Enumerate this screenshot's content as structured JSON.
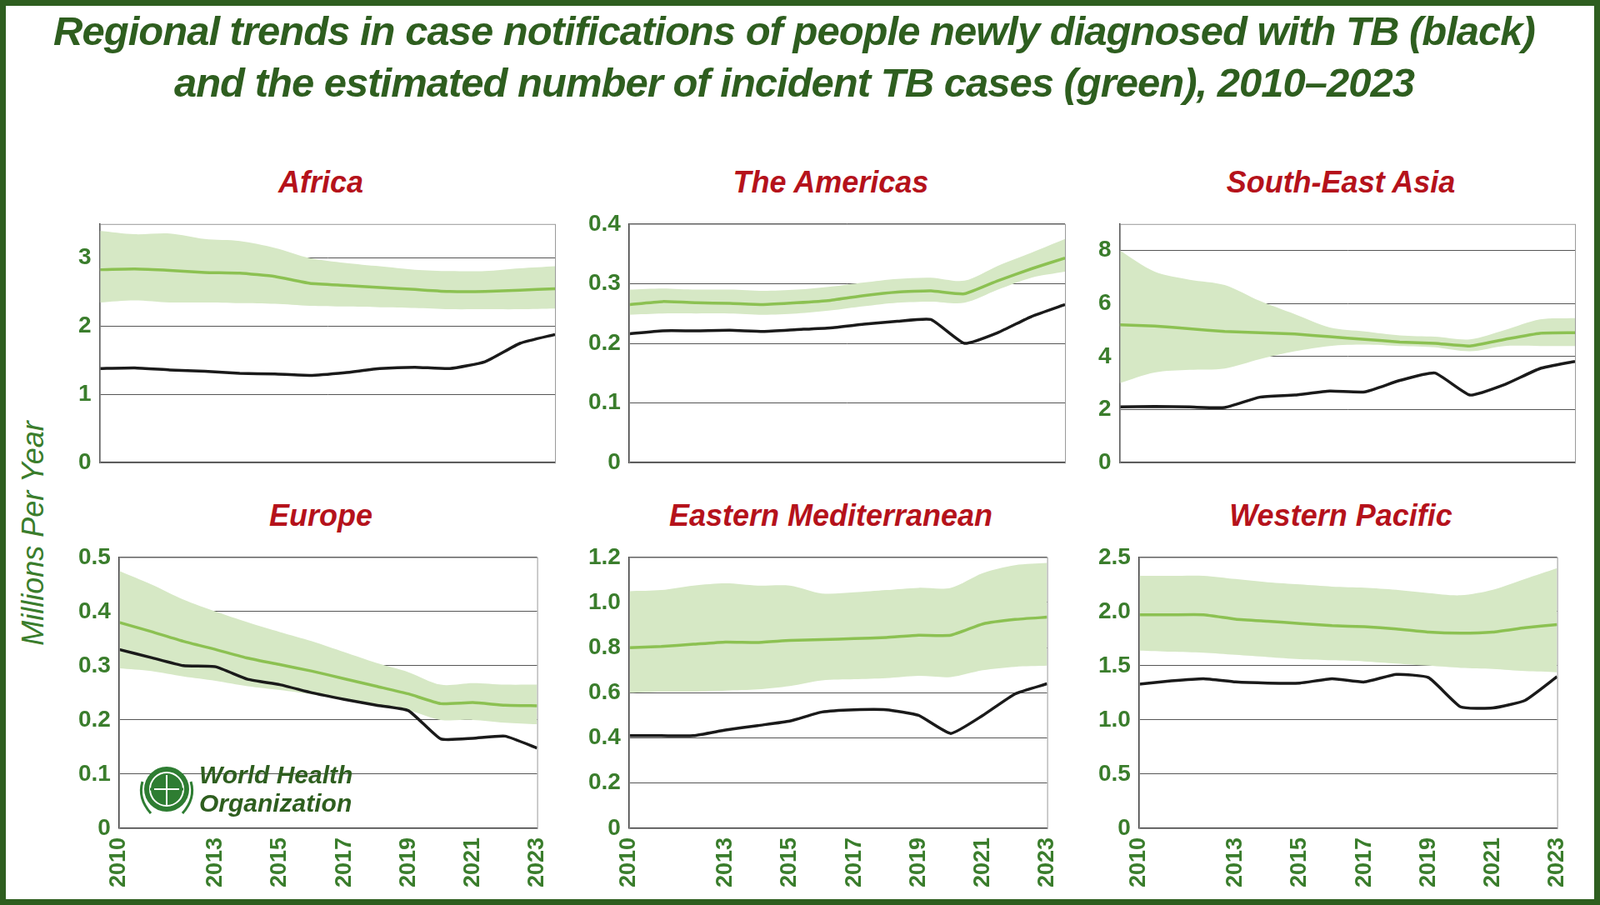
{
  "title": "Regional trends in case notifications of people newly diagnosed with TB (black) and the estimated number of incident TB cases (green), 2010–2023",
  "y_label": "Millions Per Year",
  "chart_data": [
    {
      "type": "line",
      "title": "Africa",
      "x": [
        2010,
        2011,
        2012,
        2013,
        2014,
        2015,
        2016,
        2017,
        2018,
        2019,
        2020,
        2021,
        2022,
        2023
      ],
      "xlim": [
        2010,
        2023
      ],
      "xticks": [
        2010,
        2013,
        2015,
        2017,
        2019,
        2021,
        2023
      ],
      "ylim": [
        0,
        3.5
      ],
      "yticks": [
        0,
        1,
        2,
        3
      ],
      "grid": true,
      "tick_labels": "y",
      "series": [
        {
          "type": "band",
          "color": "#d6e8c5",
          "lower": [
            2.35,
            2.38,
            2.35,
            2.35,
            2.34,
            2.33,
            2.3,
            2.29,
            2.28,
            2.27,
            2.25,
            2.25,
            2.25,
            2.26
          ],
          "upper": [
            3.4,
            3.35,
            3.36,
            3.28,
            3.25,
            3.15,
            3.0,
            2.93,
            2.88,
            2.83,
            2.81,
            2.81,
            2.85,
            2.88
          ]
        },
        {
          "color": "#8cc152",
          "values": [
            2.83,
            2.84,
            2.82,
            2.79,
            2.78,
            2.73,
            2.63,
            2.6,
            2.57,
            2.54,
            2.51,
            2.51,
            2.53,
            2.55
          ]
        },
        {
          "color": "#1a1a1a",
          "values": [
            1.38,
            1.39,
            1.36,
            1.34,
            1.31,
            1.3,
            1.28,
            1.32,
            1.38,
            1.4,
            1.38,
            1.48,
            1.75,
            1.88
          ]
        }
      ]
    },
    {
      "type": "line",
      "title": "The Americas",
      "x": [
        2010,
        2011,
        2012,
        2013,
        2014,
        2015,
        2016,
        2017,
        2018,
        2019,
        2020,
        2021,
        2022,
        2023
      ],
      "xlim": [
        2010,
        2023
      ],
      "xticks": [
        2010,
        2013,
        2015,
        2017,
        2019,
        2021,
        2023
      ],
      "ylim": [
        0,
        0.4
      ],
      "yticks": [
        0,
        0.1,
        0.2,
        0.3,
        0.4
      ],
      "grid": true,
      "tick_labels": "y",
      "series": [
        {
          "type": "band",
          "color": "#d6e8c5",
          "lower": [
            0.248,
            0.25,
            0.25,
            0.25,
            0.248,
            0.25,
            0.255,
            0.262,
            0.268,
            0.27,
            0.268,
            0.29,
            0.31,
            0.32
          ],
          "upper": [
            0.29,
            0.292,
            0.29,
            0.29,
            0.288,
            0.29,
            0.295,
            0.302,
            0.308,
            0.31,
            0.305,
            0.33,
            0.352,
            0.375
          ]
        },
        {
          "color": "#8cc152",
          "values": [
            0.265,
            0.27,
            0.268,
            0.267,
            0.265,
            0.268,
            0.272,
            0.28,
            0.286,
            0.288,
            0.283,
            0.305,
            0.325,
            0.343
          ]
        },
        {
          "color": "#1a1a1a",
          "values": [
            0.216,
            0.221,
            0.221,
            0.222,
            0.22,
            0.223,
            0.226,
            0.232,
            0.237,
            0.24,
            0.2,
            0.218,
            0.245,
            0.265
          ]
        }
      ]
    },
    {
      "type": "line",
      "title": "South-East Asia",
      "x": [
        2010,
        2011,
        2012,
        2013,
        2014,
        2015,
        2016,
        2017,
        2018,
        2019,
        2020,
        2021,
        2022,
        2023
      ],
      "xlim": [
        2010,
        2023
      ],
      "xticks": [
        2010,
        2013,
        2015,
        2017,
        2019,
        2021,
        2023
      ],
      "ylim": [
        0,
        9
      ],
      "yticks": [
        0,
        2,
        4,
        6,
        8
      ],
      "grid": true,
      "tick_labels": "y",
      "series": [
        {
          "type": "band",
          "color": "#d6e8c5",
          "lower": [
            3.0,
            3.4,
            3.5,
            3.55,
            3.9,
            4.2,
            4.4,
            4.45,
            4.4,
            4.35,
            4.2,
            4.4,
            4.4,
            4.4
          ],
          "upper": [
            8.0,
            7.2,
            6.9,
            6.7,
            6.1,
            5.6,
            5.1,
            4.95,
            4.8,
            4.75,
            4.65,
            5.0,
            5.4,
            5.45
          ]
        },
        {
          "color": "#8cc152",
          "values": [
            5.2,
            5.15,
            5.05,
            4.95,
            4.9,
            4.85,
            4.75,
            4.65,
            4.55,
            4.5,
            4.4,
            4.65,
            4.88,
            4.9
          ]
        },
        {
          "color": "#1a1a1a",
          "values": [
            2.1,
            2.12,
            2.1,
            2.08,
            2.47,
            2.55,
            2.7,
            2.67,
            3.1,
            3.38,
            2.55,
            2.95,
            3.55,
            3.82
          ]
        }
      ]
    },
    {
      "type": "line",
      "title": "Europe",
      "annotation": "World Health Organization",
      "x": [
        2010,
        2011,
        2012,
        2013,
        2014,
        2015,
        2016,
        2017,
        2018,
        2019,
        2020,
        2021,
        2022,
        2023
      ],
      "xlim": [
        2010,
        2023
      ],
      "xticks": [
        2010,
        2013,
        2015,
        2017,
        2019,
        2021,
        2023
      ],
      "ylim": [
        0,
        0.5
      ],
      "yticks": [
        0,
        0.1,
        0.2,
        0.3,
        0.4,
        0.5
      ],
      "grid": true,
      "series": [
        {
          "type": "band",
          "color": "#d6e8c5",
          "lower": [
            0.295,
            0.29,
            0.28,
            0.272,
            0.262,
            0.255,
            0.247,
            0.238,
            0.228,
            0.218,
            0.2,
            0.2,
            0.195,
            0.192
          ],
          "upper": [
            0.475,
            0.45,
            0.422,
            0.4,
            0.38,
            0.362,
            0.345,
            0.325,
            0.305,
            0.288,
            0.265,
            0.268,
            0.265,
            0.265
          ]
        },
        {
          "color": "#8cc152",
          "values": [
            0.38,
            0.363,
            0.345,
            0.33,
            0.314,
            0.302,
            0.29,
            0.276,
            0.262,
            0.248,
            0.23,
            0.232,
            0.227,
            0.226
          ]
        },
        {
          "color": "#1a1a1a",
          "values": [
            0.33,
            0.315,
            0.3,
            0.298,
            0.275,
            0.265,
            0.25,
            0.238,
            0.227,
            0.217,
            0.165,
            0.166,
            0.17,
            0.148
          ]
        }
      ]
    },
    {
      "type": "line",
      "title": "Eastern Mediterranean",
      "x": [
        2010,
        2011,
        2012,
        2013,
        2014,
        2015,
        2016,
        2017,
        2018,
        2019,
        2020,
        2021,
        2022,
        2023
      ],
      "xlim": [
        2010,
        2023
      ],
      "xticks": [
        2010,
        2013,
        2015,
        2017,
        2019,
        2021,
        2023
      ],
      "ylim": [
        0,
        1.2
      ],
      "yticks": [
        0,
        0.2,
        0.4,
        0.6,
        0.8,
        {
          "value": 1,
          "label": "1.0"
        },
        1.2
      ],
      "grid": true,
      "series": [
        {
          "type": "band",
          "color": "#d6e8c5",
          "lower": [
            0.6,
            0.605,
            0.605,
            0.61,
            0.615,
            0.63,
            0.655,
            0.66,
            0.665,
            0.675,
            0.67,
            0.7,
            0.715,
            0.72
          ],
          "upper": [
            1.05,
            1.055,
            1.075,
            1.085,
            1.075,
            1.075,
            1.04,
            1.045,
            1.055,
            1.065,
            1.065,
            1.13,
            1.165,
            1.175
          ]
        },
        {
          "color": "#8cc152",
          "values": [
            0.8,
            0.805,
            0.815,
            0.825,
            0.823,
            0.832,
            0.836,
            0.84,
            0.845,
            0.855,
            0.855,
            0.905,
            0.925,
            0.935
          ]
        },
        {
          "color": "#1a1a1a",
          "values": [
            0.41,
            0.41,
            0.41,
            0.435,
            0.455,
            0.475,
            0.515,
            0.525,
            0.525,
            0.5,
            0.42,
            0.5,
            0.595,
            0.64
          ]
        }
      ]
    },
    {
      "type": "line",
      "title": "Western Pacific",
      "x": [
        2010,
        2011,
        2012,
        2013,
        2014,
        2015,
        2016,
        2017,
        2018,
        2019,
        2020,
        2021,
        2022,
        2023
      ],
      "xlim": [
        2010,
        2023
      ],
      "xticks": [
        2010,
        2013,
        2015,
        2017,
        2019,
        2021,
        2023
      ],
      "ylim": [
        0,
        2.5
      ],
      "yticks": [
        0,
        0.5,
        {
          "value": 1,
          "label": "1.0"
        },
        1.5,
        {
          "value": 2,
          "label": "2.0"
        },
        2.5
      ],
      "grid": true,
      "series": [
        {
          "type": "band",
          "color": "#d6e8c5",
          "lower": [
            1.64,
            1.63,
            1.62,
            1.6,
            1.58,
            1.56,
            1.55,
            1.54,
            1.52,
            1.5,
            1.48,
            1.47,
            1.45,
            1.44
          ],
          "upper": [
            2.33,
            2.33,
            2.33,
            2.3,
            2.27,
            2.25,
            2.23,
            2.22,
            2.2,
            2.17,
            2.15,
            2.2,
            2.3,
            2.4
          ]
        },
        {
          "color": "#8cc152",
          "values": [
            1.97,
            1.97,
            1.97,
            1.93,
            1.91,
            1.89,
            1.87,
            1.86,
            1.84,
            1.81,
            1.8,
            1.81,
            1.85,
            1.88
          ]
        },
        {
          "color": "#1a1a1a",
          "values": [
            1.33,
            1.36,
            1.38,
            1.35,
            1.34,
            1.34,
            1.38,
            1.35,
            1.42,
            1.39,
            1.12,
            1.11,
            1.18,
            1.4
          ]
        }
      ]
    }
  ]
}
